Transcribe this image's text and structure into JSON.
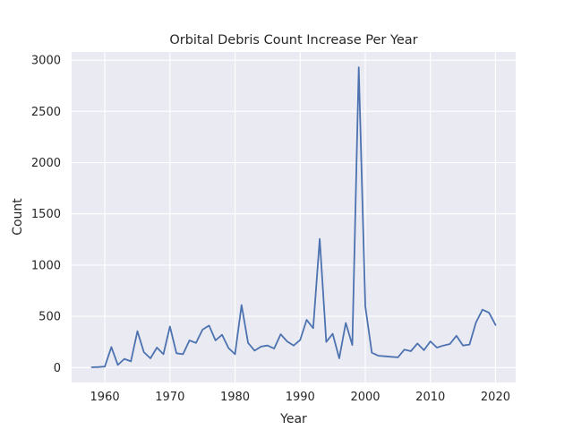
{
  "chart_data": {
    "type": "line",
    "title": "Orbital Debris Count Increase Per Year",
    "xlabel": "Year",
    "ylabel": "Count",
    "xlim": [
      1954.9,
      2023.1
    ],
    "ylim": [
      -146,
      3080
    ],
    "xticks": [
      1960,
      1970,
      1980,
      1990,
      2000,
      2010,
      2020
    ],
    "xtick_labels": [
      "1960",
      "1970",
      "1980",
      "1990",
      "2000",
      "2010",
      "2020"
    ],
    "yticks": [
      0,
      500,
      1000,
      1500,
      2000,
      2500,
      3000
    ],
    "ytick_labels": [
      "0",
      "500",
      "1000",
      "1500",
      "2000",
      "2500",
      "3000"
    ],
    "grid": true,
    "background": "#eaeaf2",
    "grid_color": "#ffffff",
    "line_color": "#4c72b0",
    "series": [
      {
        "x": [
          1958,
          1959,
          1960,
          1961,
          1962,
          1963,
          1964,
          1965,
          1966,
          1967,
          1968,
          1969,
          1970,
          1971,
          1972,
          1973,
          1974,
          1975,
          1976,
          1977,
          1978,
          1979,
          1980,
          1981,
          1982,
          1983,
          1984,
          1985,
          1986,
          1987,
          1988,
          1989,
          1990,
          1991,
          1992,
          1993,
          1994,
          1995,
          1996,
          1997,
          1998,
          1999,
          2000,
          2001,
          2002,
          2003,
          2004,
          2005,
          2006,
          2007,
          2008,
          2009,
          2010,
          2011,
          2012,
          2013,
          2014,
          2015,
          2016,
          2017,
          2018,
          2019,
          2020
        ],
        "y": [
          3,
          5,
          10,
          200,
          25,
          85,
          60,
          355,
          150,
          90,
          195,
          130,
          400,
          140,
          130,
          265,
          240,
          370,
          410,
          265,
          320,
          190,
          130,
          610,
          240,
          165,
          205,
          215,
          185,
          325,
          255,
          215,
          270,
          465,
          385,
          1255,
          250,
          330,
          90,
          435,
          220,
          2930,
          600,
          145,
          115,
          110,
          105,
          100,
          175,
          160,
          235,
          170,
          255,
          195,
          215,
          230,
          310,
          215,
          225,
          440,
          565,
          535,
          415
        ]
      }
    ]
  }
}
